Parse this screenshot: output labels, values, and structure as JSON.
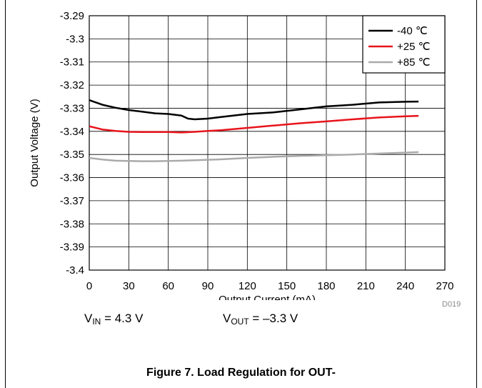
{
  "chart_data": {
    "type": "line",
    "xlabel": "Output Current (mA)",
    "ylabel": "Output Voltage (V)",
    "xlim": [
      0,
      270
    ],
    "ylim": [
      -3.4,
      -3.29
    ],
    "x_ticks": [
      0,
      30,
      60,
      90,
      120,
      150,
      180,
      210,
      240,
      270
    ],
    "y_ticks": [
      -3.29,
      -3.3,
      -3.31,
      -3.32,
      -3.33,
      -3.34,
      -3.35,
      -3.36,
      -3.37,
      -3.38,
      -3.39,
      -3.4
    ],
    "x_tick_labels": [
      "0",
      "30",
      "60",
      "90",
      "120",
      "150",
      "180",
      "210",
      "240",
      "270"
    ],
    "y_tick_labels": [
      "-3.29",
      "-3.3",
      "-3.31",
      "-3.32",
      "-3.33",
      "-3.34",
      "-3.35",
      "-3.36",
      "-3.37",
      "-3.38",
      "-3.39",
      "-3.4"
    ],
    "grid": true,
    "legend_position": "top-right",
    "series": [
      {
        "name": "-40 ℃",
        "color": "#000000",
        "x": [
          0,
          10,
          20,
          30,
          40,
          50,
          60,
          70,
          75,
          80,
          90,
          100,
          120,
          140,
          160,
          180,
          200,
          220,
          240,
          250
        ],
        "y": [
          -3.3265,
          -3.3285,
          -3.3298,
          -3.3308,
          -3.3315,
          -3.3322,
          -3.3325,
          -3.3332,
          -3.3345,
          -3.3348,
          -3.3345,
          -3.3338,
          -3.3325,
          -3.3318,
          -3.3305,
          -3.3292,
          -3.3285,
          -3.3275,
          -3.3272,
          -3.3271
        ]
      },
      {
        "name": "+25 ℃",
        "color": "#e8141c",
        "x": [
          0,
          10,
          20,
          30,
          40,
          50,
          60,
          70,
          80,
          90,
          100,
          120,
          140,
          160,
          180,
          200,
          220,
          240,
          250
        ],
        "y": [
          -3.3378,
          -3.3392,
          -3.3398,
          -3.3402,
          -3.3403,
          -3.3403,
          -3.3403,
          -3.3405,
          -3.3402,
          -3.3398,
          -3.3395,
          -3.3385,
          -3.3375,
          -3.3365,
          -3.3357,
          -3.3348,
          -3.334,
          -3.3335,
          -3.3333
        ]
      },
      {
        "name": "+85 ℃",
        "color": "#aaaaaa",
        "x": [
          0,
          10,
          20,
          30,
          40,
          50,
          60,
          70,
          80,
          90,
          100,
          120,
          140,
          160,
          180,
          200,
          220,
          240,
          250
        ],
        "y": [
          -3.3515,
          -3.3522,
          -3.3527,
          -3.3528,
          -3.3529,
          -3.3529,
          -3.3528,
          -3.3527,
          -3.3525,
          -3.3523,
          -3.3521,
          -3.3515,
          -3.351,
          -3.3506,
          -3.3503,
          -3.35,
          -3.3496,
          -3.3492,
          -3.349
        ]
      }
    ]
  },
  "conditions": {
    "vin_prefix": "V",
    "vin_sub": "IN",
    "vin_value": " = 4.3 V",
    "vout_prefix": "V",
    "vout_sub": "OUT",
    "vout_value": " = –3.3 V"
  },
  "figure_code": "D019",
  "caption": "Figure 7. Load Regulation for OUT-"
}
